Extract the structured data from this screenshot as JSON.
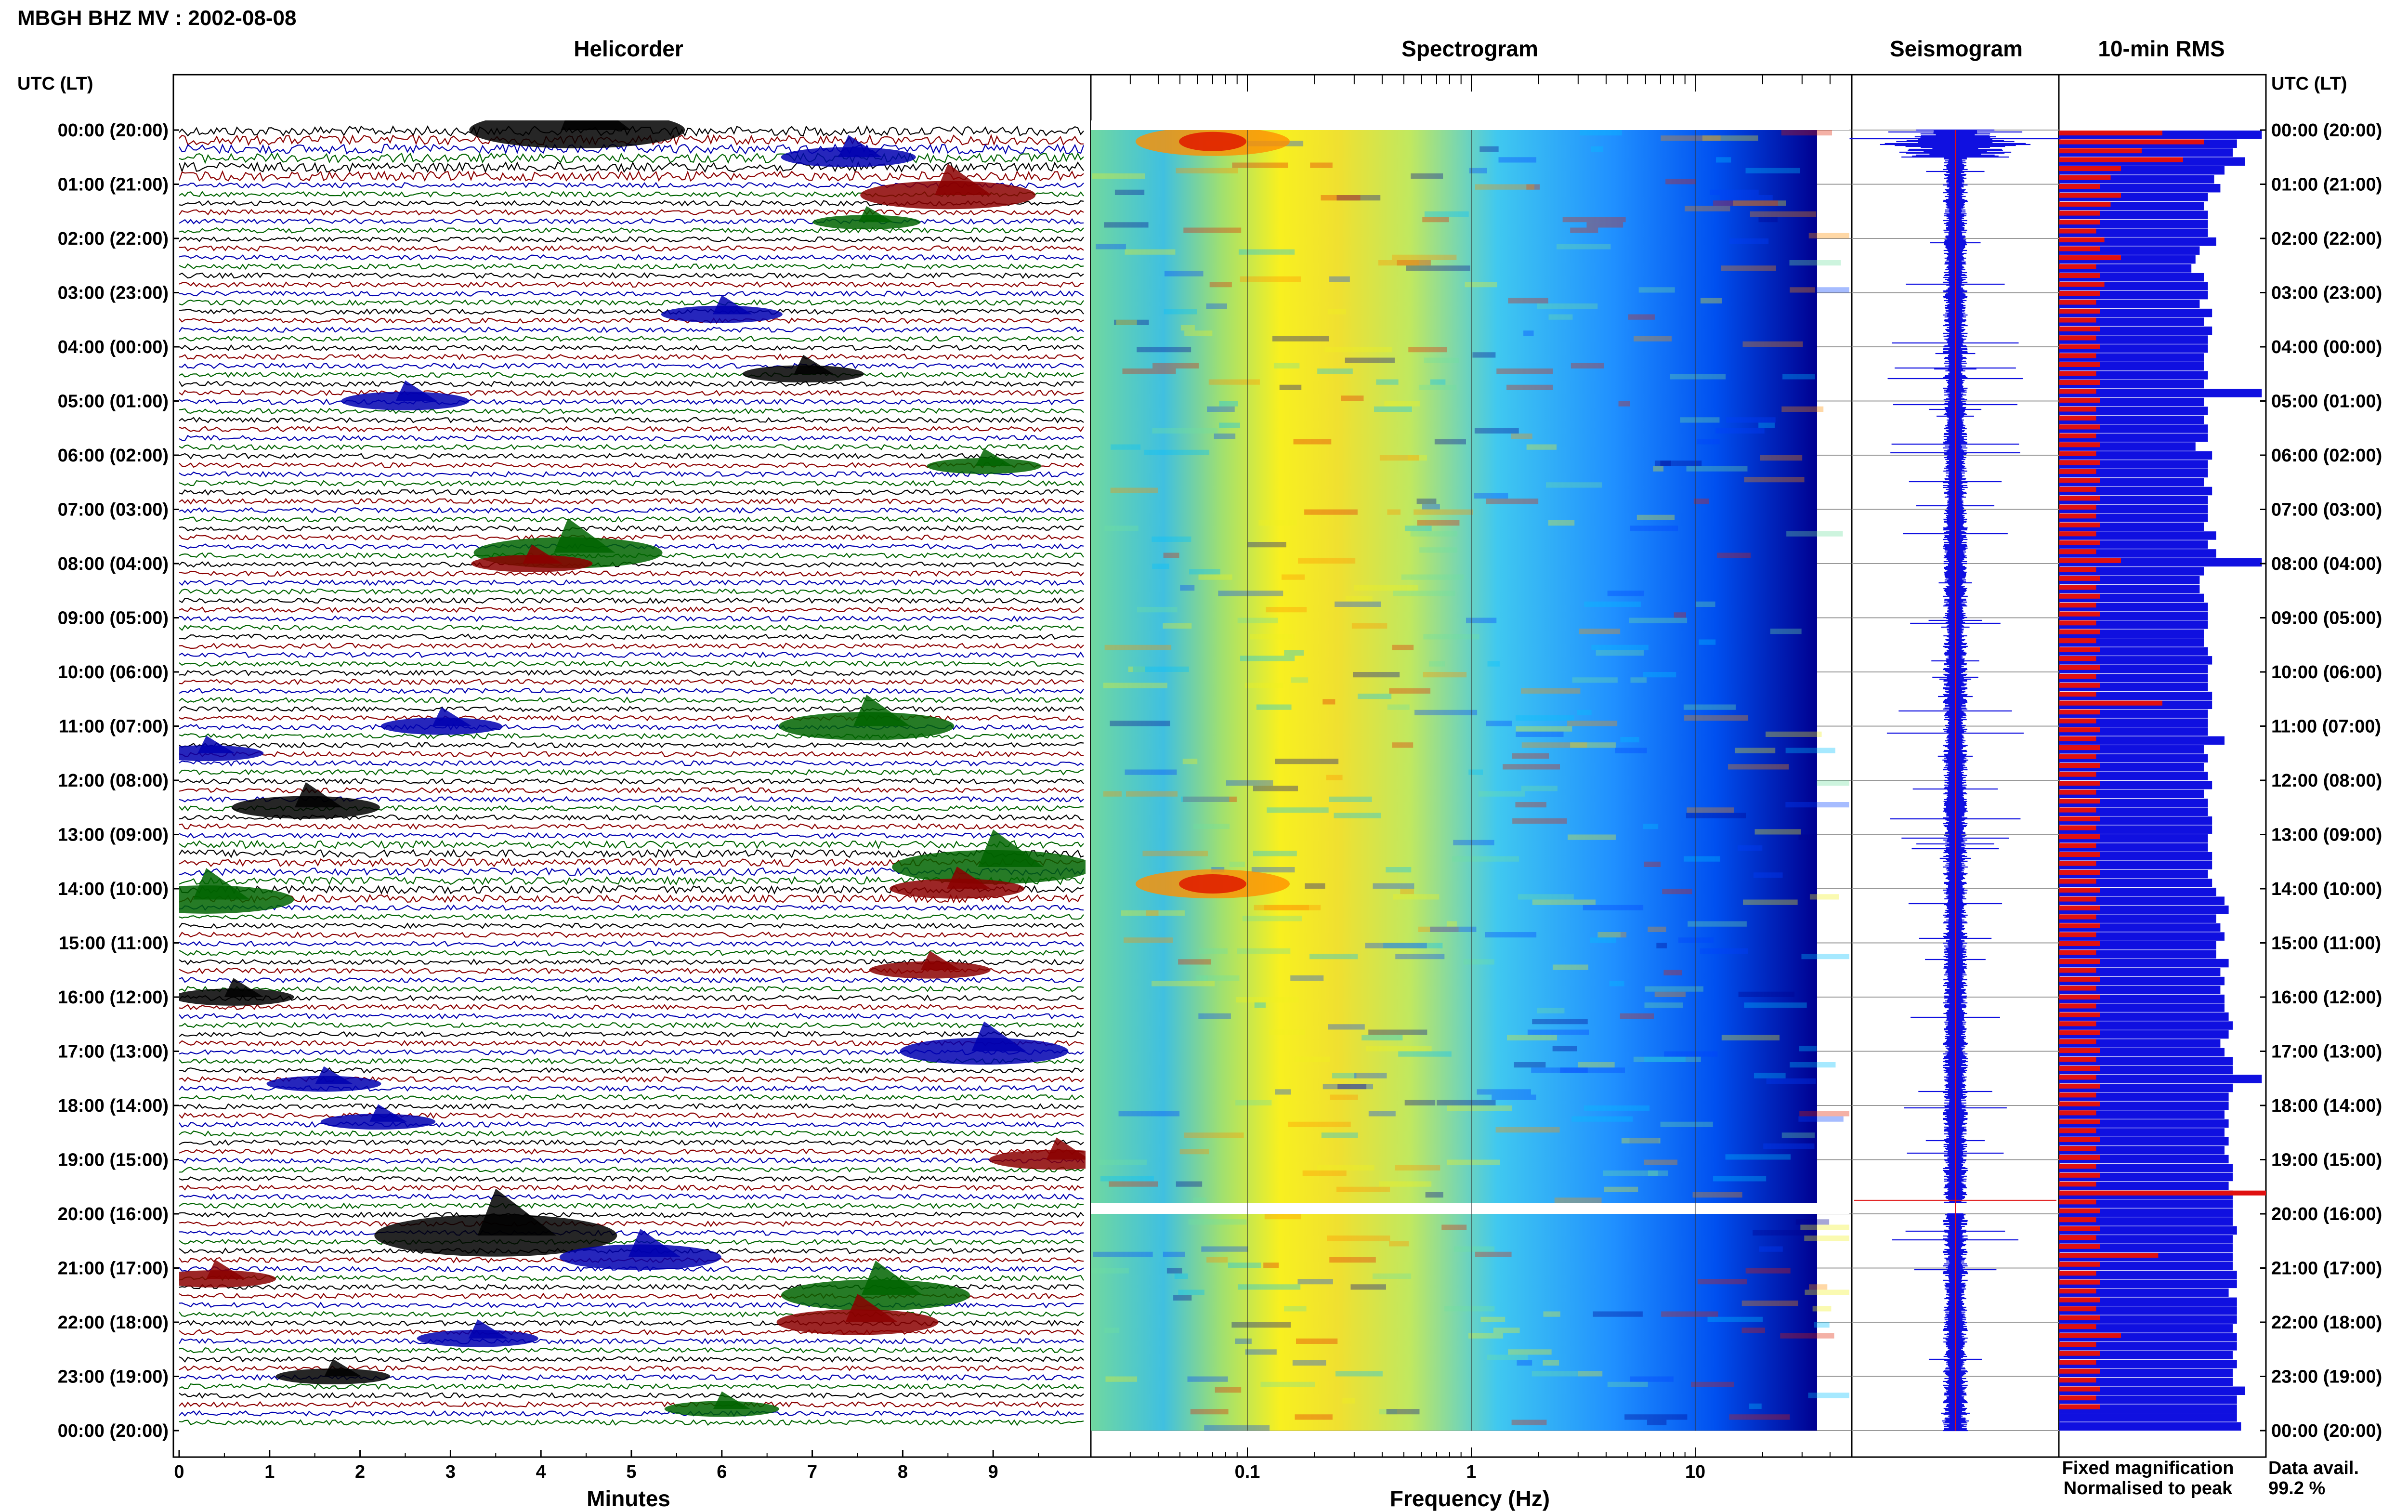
{
  "page": {
    "station_title": "MBGH BHZ MV : 2002-08-08"
  },
  "panels": {
    "helicorder": "Helicorder",
    "spectrogram": "Spectrogram",
    "seismogram": "Seismogram",
    "rms": "10-min RMS"
  },
  "time_axis": {
    "header": "UTC (LT)",
    "labels": [
      "00:00 (20:00)",
      "01:00 (21:00)",
      "02:00 (22:00)",
      "03:00 (23:00)",
      "04:00 (00:00)",
      "05:00 (01:00)",
      "06:00 (02:00)",
      "07:00 (03:00)",
      "08:00 (04:00)",
      "09:00 (05:00)",
      "10:00 (06:00)",
      "11:00 (07:00)",
      "12:00 (08:00)",
      "13:00 (09:00)",
      "14:00 (10:00)",
      "15:00 (11:00)",
      "16:00 (12:00)",
      "17:00 (13:00)",
      "18:00 (14:00)",
      "19:00 (15:00)",
      "20:00 (16:00)",
      "21:00 (17:00)",
      "22:00 (18:00)",
      "23:00 (19:00)",
      "00:00 (20:00)"
    ]
  },
  "legend": {
    "fixed": "Fixed magnification",
    "normalised": "Normalised to peak",
    "fixed_color": "#1010e0",
    "normalised_color": "#e01010"
  },
  "availability": {
    "label": "Data avail.",
    "value": "99.2 %"
  },
  "chart_data": [
    {
      "type": "line",
      "panel": "helicorder",
      "xlabel": "Minutes",
      "x_ticks": [
        "0",
        "1",
        "2",
        "3",
        "4",
        "5",
        "6",
        "7",
        "8",
        "9"
      ],
      "xlim": [
        0,
        10
      ],
      "trace_colors": [
        "#000000",
        "#8b0000",
        "#0000b0",
        "#006400"
      ],
      "traces_per_hour": 6,
      "events": [
        {
          "hour": 0.0,
          "minute": 4.4,
          "size": 2.2,
          "color": "#000000"
        },
        {
          "hour": 0.5,
          "minute": 7.4,
          "size": 1.0,
          "color": "#0000b0"
        },
        {
          "hour": 1.2,
          "minute": 8.5,
          "size": 1.6,
          "color": "#8b0000"
        },
        {
          "hour": 1.7,
          "minute": 7.6,
          "size": 0.6,
          "color": "#006400"
        },
        {
          "hour": 3.4,
          "minute": 6.0,
          "size": 0.8,
          "color": "#0000b0"
        },
        {
          "hour": 4.5,
          "minute": 6.9,
          "size": 0.8,
          "color": "#000000"
        },
        {
          "hour": 5.0,
          "minute": 2.5,
          "size": 0.9,
          "color": "#0000b0"
        },
        {
          "hour": 6.2,
          "minute": 8.9,
          "size": 0.7,
          "color": "#006400"
        },
        {
          "hour": 7.8,
          "minute": 4.3,
          "size": 1.8,
          "color": "#006400"
        },
        {
          "hour": 8.0,
          "minute": 3.9,
          "size": 0.8,
          "color": "#8b0000"
        },
        {
          "hour": 11.0,
          "minute": 7.6,
          "size": 1.6,
          "color": "#006400"
        },
        {
          "hour": 11.0,
          "minute": 2.9,
          "size": 0.8,
          "color": "#0000b0"
        },
        {
          "hour": 11.5,
          "minute": 0.3,
          "size": 0.7,
          "color": "#0000b0"
        },
        {
          "hour": 12.5,
          "minute": 1.4,
          "size": 1.2,
          "color": "#000000"
        },
        {
          "hour": 13.6,
          "minute": 9.0,
          "size": 2.0,
          "color": "#006400"
        },
        {
          "hour": 14.0,
          "minute": 8.6,
          "size": 1.0,
          "color": "#8b0000"
        },
        {
          "hour": 14.2,
          "minute": 0.3,
          "size": 1.6,
          "color": "#006400"
        },
        {
          "hour": 15.5,
          "minute": 8.3,
          "size": 0.8,
          "color": "#8b0000"
        },
        {
          "hour": 16.0,
          "minute": 0.6,
          "size": 0.8,
          "color": "#000000"
        },
        {
          "hour": 17.0,
          "minute": 8.9,
          "size": 1.5,
          "color": "#0000b0"
        },
        {
          "hour": 17.6,
          "minute": 1.6,
          "size": 0.7,
          "color": "#0000b0"
        },
        {
          "hour": 18.3,
          "minute": 2.2,
          "size": 0.7,
          "color": "#0000b0"
        },
        {
          "hour": 19.0,
          "minute": 9.7,
          "size": 1.0,
          "color": "#8b0000"
        },
        {
          "hour": 20.4,
          "minute": 3.5,
          "size": 2.6,
          "color": "#000000"
        },
        {
          "hour": 20.8,
          "minute": 5.1,
          "size": 1.4,
          "color": "#0000b0"
        },
        {
          "hour": 21.5,
          "minute": 7.7,
          "size": 1.8,
          "color": "#006400"
        },
        {
          "hour": 21.2,
          "minute": 0.4,
          "size": 0.8,
          "color": "#8b0000"
        },
        {
          "hour": 22.0,
          "minute": 7.5,
          "size": 1.4,
          "color": "#8b0000"
        },
        {
          "hour": 22.3,
          "minute": 3.3,
          "size": 0.8,
          "color": "#0000b0"
        },
        {
          "hour": 23.0,
          "minute": 1.7,
          "size": 0.7,
          "color": "#000000"
        },
        {
          "hour": 23.6,
          "minute": 6.0,
          "size": 0.7,
          "color": "#006400"
        }
      ]
    },
    {
      "type": "heatmap",
      "panel": "spectrogram",
      "xlabel": "Frequency (Hz)",
      "x_scale": "log",
      "xlim": [
        0.02,
        50
      ],
      "x_ticks": [
        "0.1",
        "1",
        "10"
      ],
      "data_end_hz": 35,
      "data_gap_hours": [
        19.8,
        20.0
      ],
      "colormap": [
        "#00008b",
        "#0040ff",
        "#00c0ff",
        "#70e0a0",
        "#f0f020",
        "#ff9000",
        "#e02000"
      ],
      "strong_low_freq_bursts": [
        {
          "hour": 0.3,
          "freq_hz": 0.07
        },
        {
          "hour": 14.0,
          "freq_hz": 0.07
        }
      ]
    },
    {
      "type": "line",
      "panel": "seismogram",
      "series": [
        {
          "name": "Fixed magnification",
          "color": "#1010e0"
        },
        {
          "name": "Normalised to peak",
          "color": "#e01010"
        }
      ],
      "data_gap_hours": [
        19.8,
        20.0
      ]
    },
    {
      "type": "bar",
      "panel": "rms",
      "orientation": "horizontal",
      "interval_minutes": 10,
      "series": [
        {
          "name": "Fixed magnification",
          "color": "#1010e0",
          "values": [
            0.98,
            0.86,
            0.84,
            0.9,
            0.8,
            0.75,
            0.78,
            0.72,
            0.7,
            0.72,
            0.72,
            0.72,
            0.76,
            0.68,
            0.66,
            0.64,
            0.7,
            0.72,
            0.72,
            0.68,
            0.74,
            0.7,
            0.74,
            0.72,
            0.72,
            0.7,
            0.7,
            0.72,
            0.7,
            0.98,
            0.7,
            0.72,
            0.7,
            0.72,
            0.72,
            0.66,
            0.74,
            0.72,
            0.72,
            0.7,
            0.74,
            0.72,
            0.72,
            0.72,
            0.7,
            0.76,
            0.72,
            0.76,
            0.98,
            0.7,
            0.68,
            0.68,
            0.7,
            0.72,
            0.72,
            0.72,
            0.7,
            0.7,
            0.72,
            0.74,
            0.72,
            0.72,
            0.72,
            0.74,
            0.74,
            0.72,
            0.72,
            0.72,
            0.8,
            0.7,
            0.72,
            0.7,
            0.72,
            0.74,
            0.7,
            0.72,
            0.72,
            0.74,
            0.74,
            0.72,
            0.72,
            0.74,
            0.74,
            0.72,
            0.74,
            0.76,
            0.8,
            0.82,
            0.76,
            0.78,
            0.8,
            0.76,
            0.76,
            0.82,
            0.78,
            0.8,
            0.78,
            0.8,
            0.8,
            0.82,
            0.84,
            0.82,
            0.78,
            0.8,
            0.84,
            0.84,
            0.98,
            0.84,
            0.82,
            0.82,
            0.8,
            0.82,
            0.8,
            0.82,
            0.8,
            0.82,
            0.84,
            0.84,
            0.82,
            0.84,
            0.84,
            0.84,
            0.84,
            0.86,
            0.84,
            0.84,
            0.84,
            0.84,
            0.86,
            0.86,
            0.82,
            0.86,
            0.86,
            0.86,
            0.84,
            0.86,
            0.86,
            0.84,
            0.86,
            0.84,
            0.84,
            0.9,
            0.86,
            0.86,
            0.86,
            0.88
          ]
        },
        {
          "name": "Normalised to peak",
          "color": "#e01010",
          "values": [
            0.5,
            0.7,
            0.4,
            0.6,
            0.3,
            0.25,
            0.2,
            0.3,
            0.25,
            0.2,
            0.2,
            0.18,
            0.22,
            0.2,
            0.3,
            0.18,
            0.2,
            0.22,
            0.2,
            0.18,
            0.2,
            0.18,
            0.2,
            0.18,
            0.2,
            0.18,
            0.2,
            0.18,
            0.2,
            0.18,
            0.2,
            0.18,
            0.18,
            0.2,
            0.18,
            0.2,
            0.18,
            0.2,
            0.18,
            0.2,
            0.18,
            0.2,
            0.18,
            0.18,
            0.2,
            0.18,
            0.2,
            0.18,
            0.3,
            0.18,
            0.2,
            0.18,
            0.2,
            0.18,
            0.2,
            0.18,
            0.2,
            0.18,
            0.2,
            0.18,
            0.2,
            0.18,
            0.2,
            0.18,
            0.5,
            0.2,
            0.18,
            0.2,
            0.18,
            0.2,
            0.18,
            0.2,
            0.18,
            0.2,
            0.18,
            0.2,
            0.18,
            0.2,
            0.18,
            0.2,
            0.18,
            0.2,
            0.18,
            0.2,
            0.18,
            0.2,
            0.18,
            0.2,
            0.18,
            0.2,
            0.18,
            0.2,
            0.18,
            0.2,
            0.18,
            0.2,
            0.18,
            0.2,
            0.18,
            0.2,
            0.18,
            0.2,
            0.18,
            0.2,
            0.18,
            0.2,
            0.18,
            0.2,
            0.18,
            0.2,
            0.18,
            0.2,
            0.18,
            0.2,
            0.18,
            0.2,
            0.18,
            0.2,
            0.18,
            1.0,
            0.18,
            0.2,
            0.18,
            0.2,
            0.18,
            0.2,
            0.48,
            0.2,
            0.18,
            0.2,
            0.18,
            0.2,
            0.18,
            0.2,
            0.18,
            0.3,
            0.18,
            0.2,
            0.18,
            0.2,
            0.18,
            0.2,
            0.18,
            0.2
          ]
        }
      ]
    }
  ]
}
